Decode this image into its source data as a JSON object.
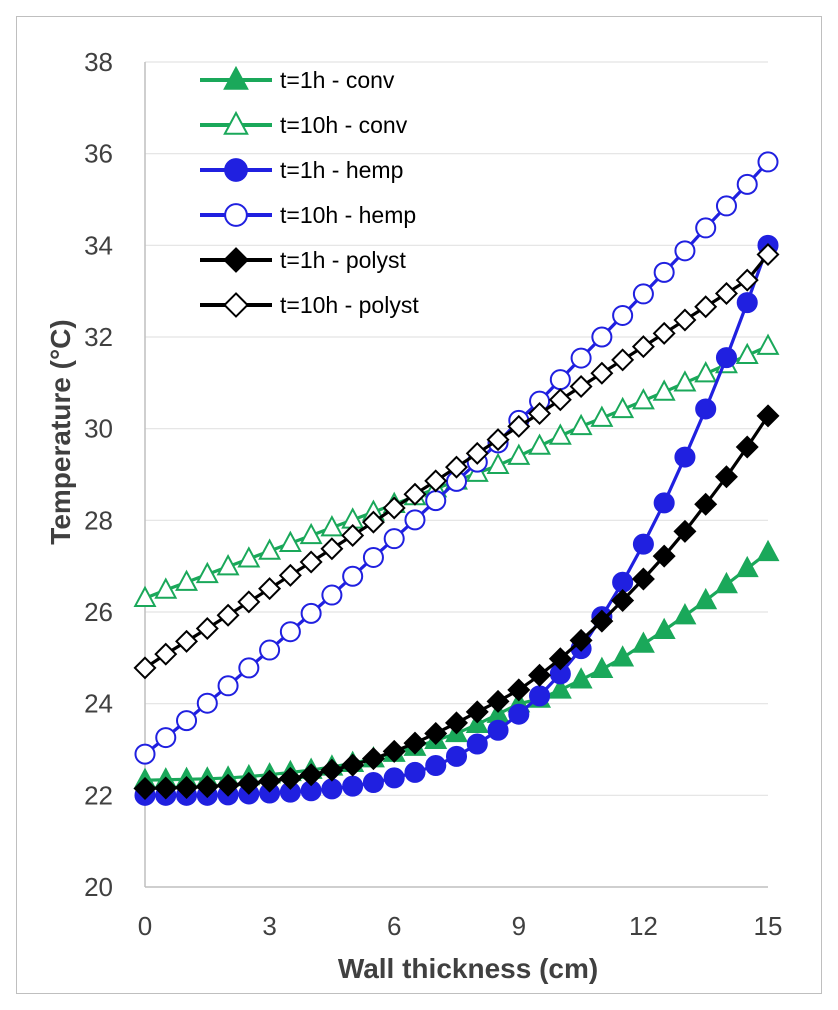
{
  "chart_data": {
    "type": "line",
    "title": "",
    "xlabel": "Wall thickness (cm)",
    "ylabel": "Temperature (°C)",
    "xlim": [
      0,
      15
    ],
    "ylim": [
      20,
      38
    ],
    "xticks": [
      0,
      3,
      6,
      9,
      12,
      15
    ],
    "yticks": [
      20,
      22,
      24,
      26,
      28,
      30,
      32,
      34,
      36,
      38
    ],
    "x_tick_labels": [
      "0",
      "3",
      "6",
      "9",
      "12",
      "15"
    ],
    "y_tick_labels": [
      "20",
      "22",
      "24",
      "26",
      "28",
      "30",
      "32",
      "34",
      "36",
      "38"
    ],
    "grid": "horizontal",
    "legend_position": "top-left",
    "x": [
      0,
      0.5,
      1,
      1.5,
      2,
      2.5,
      3,
      3.5,
      4,
      4.5,
      5,
      5.5,
      6,
      6.5,
      7,
      7.5,
      8,
      8.5,
      9,
      9.5,
      10,
      10.5,
      11,
      11.5,
      12,
      12.5,
      13,
      13.5,
      14,
      14.5,
      15
    ],
    "series": [
      {
        "name": "t=1h - conv",
        "color": "#1aa85a",
        "marker": "triangle",
        "filled": true,
        "values": [
          22.33,
          22.34,
          22.35,
          22.36,
          22.38,
          22.41,
          22.45,
          22.5,
          22.55,
          22.62,
          22.7,
          22.8,
          22.92,
          23.05,
          23.2,
          23.35,
          23.55,
          23.77,
          24.0,
          24.1,
          24.3,
          24.52,
          24.75,
          25.0,
          25.3,
          25.6,
          25.92,
          26.25,
          26.6,
          26.95,
          27.3
        ]
      },
      {
        "name": "t=10h - conv",
        "color": "#1aa85a",
        "marker": "triangle",
        "filled": false,
        "values": [
          26.3,
          26.48,
          26.65,
          26.82,
          26.99,
          27.16,
          27.33,
          27.5,
          27.67,
          27.84,
          28.01,
          28.18,
          28.35,
          28.52,
          28.69,
          28.86,
          29.03,
          29.2,
          29.4,
          29.62,
          29.84,
          30.05,
          30.23,
          30.42,
          30.61,
          30.8,
          31.0,
          31.2,
          31.4,
          31.6,
          31.8
        ]
      },
      {
        "name": "t=1h - hemp",
        "color": "#2020e0",
        "marker": "circle",
        "filled": true,
        "values": [
          22.0,
          22.0,
          22.0,
          22.0,
          22.01,
          22.03,
          22.05,
          22.07,
          22.1,
          22.14,
          22.2,
          22.28,
          22.38,
          22.5,
          22.65,
          22.85,
          23.12,
          23.42,
          23.77,
          24.17,
          24.65,
          25.2,
          25.9,
          26.65,
          27.48,
          28.38,
          29.38,
          30.43,
          31.55,
          32.75,
          34.0
        ]
      },
      {
        "name": "t=10h - hemp",
        "color": "#2020e0",
        "marker": "circle",
        "filled": false,
        "values": [
          22.9,
          23.26,
          23.63,
          24.01,
          24.39,
          24.78,
          25.17,
          25.57,
          25.97,
          26.37,
          26.78,
          27.19,
          27.6,
          28.01,
          28.43,
          28.85,
          29.27,
          29.69,
          30.18,
          30.6,
          31.07,
          31.54,
          32.0,
          32.47,
          32.94,
          33.41,
          33.88,
          34.38,
          34.86,
          35.33,
          35.82
        ]
      },
      {
        "name": "t=1h - polyst",
        "color": "#000000",
        "marker": "diamond",
        "filled": true,
        "values": [
          22.15,
          22.16,
          22.17,
          22.19,
          22.22,
          22.26,
          22.31,
          22.37,
          22.45,
          22.55,
          22.66,
          22.8,
          22.96,
          23.14,
          23.35,
          23.58,
          23.82,
          24.05,
          24.3,
          24.62,
          24.98,
          25.38,
          25.8,
          26.25,
          26.72,
          27.22,
          27.76,
          28.35,
          28.95,
          29.6,
          30.28
        ]
      },
      {
        "name": "t=10h - polyst",
        "color": "#000000",
        "marker": "diamond",
        "filled": false,
        "values": [
          24.78,
          25.08,
          25.36,
          25.64,
          25.93,
          26.22,
          26.51,
          26.8,
          27.09,
          27.38,
          27.67,
          27.96,
          28.27,
          28.57,
          28.86,
          29.16,
          29.46,
          29.76,
          30.05,
          30.33,
          30.63,
          30.92,
          31.21,
          31.5,
          31.79,
          32.08,
          32.37,
          32.66,
          32.95,
          33.24,
          33.8
        ]
      }
    ]
  }
}
